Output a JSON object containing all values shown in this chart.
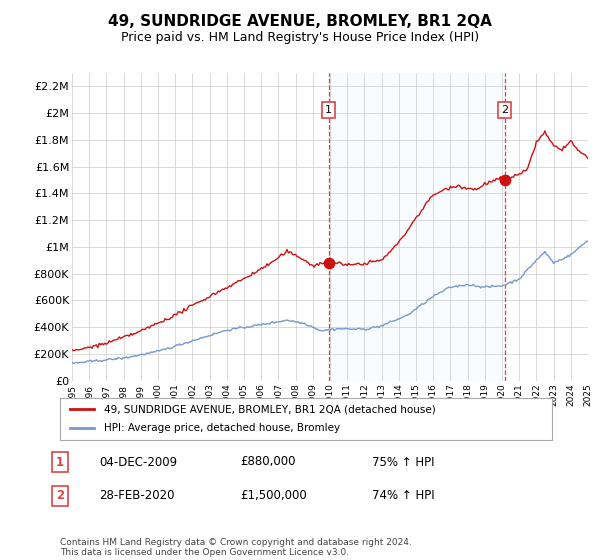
{
  "title": "49, SUNDRIDGE AVENUE, BROMLEY, BR1 2QA",
  "subtitle": "Price paid vs. HM Land Registry's House Price Index (HPI)",
  "ylim": [
    0,
    2300000
  ],
  "yticks": [
    0,
    200000,
    400000,
    600000,
    800000,
    1000000,
    1200000,
    1400000,
    1600000,
    1800000,
    2000000,
    2200000
  ],
  "ytick_labels": [
    "£0",
    "£200K",
    "£400K",
    "£600K",
    "£800K",
    "£1M",
    "£1.2M",
    "£1.4M",
    "£1.6M",
    "£1.8M",
    "£2M",
    "£2.2M"
  ],
  "xmin": 1995,
  "xmax": 2025,
  "xticks": [
    1995,
    1996,
    1997,
    1998,
    1999,
    2000,
    2001,
    2002,
    2003,
    2004,
    2005,
    2006,
    2007,
    2008,
    2009,
    2010,
    2011,
    2012,
    2013,
    2014,
    2015,
    2016,
    2017,
    2018,
    2019,
    2020,
    2021,
    2022,
    2023,
    2024,
    2025
  ],
  "grid_color": "#cccccc",
  "bg_color": "#ffffff",
  "sale1_x": 2009.92,
  "sale1_y": 880000,
  "sale2_x": 2020.16,
  "sale2_y": 1500000,
  "vline_color": "#dd4444",
  "red_line_color": "#cc1111",
  "blue_line_color": "#7799cc",
  "shade_color": "#ddeeff",
  "legend_label_red": "49, SUNDRIDGE AVENUE, BROMLEY, BR1 2QA (detached house)",
  "legend_label_blue": "HPI: Average price, detached house, Bromley",
  "sale1_label": "1",
  "sale2_label": "2",
  "table_row1": [
    "1",
    "04-DEC-2009",
    "£880,000",
    "75% ↑ HPI"
  ],
  "table_row2": [
    "2",
    "28-FEB-2020",
    "£1,500,000",
    "74% ↑ HPI"
  ],
  "footer": "Contains HM Land Registry data © Crown copyright and database right 2024.\nThis data is licensed under the Open Government Licence v3.0.",
  "title_fontsize": 11,
  "subtitle_fontsize": 9
}
